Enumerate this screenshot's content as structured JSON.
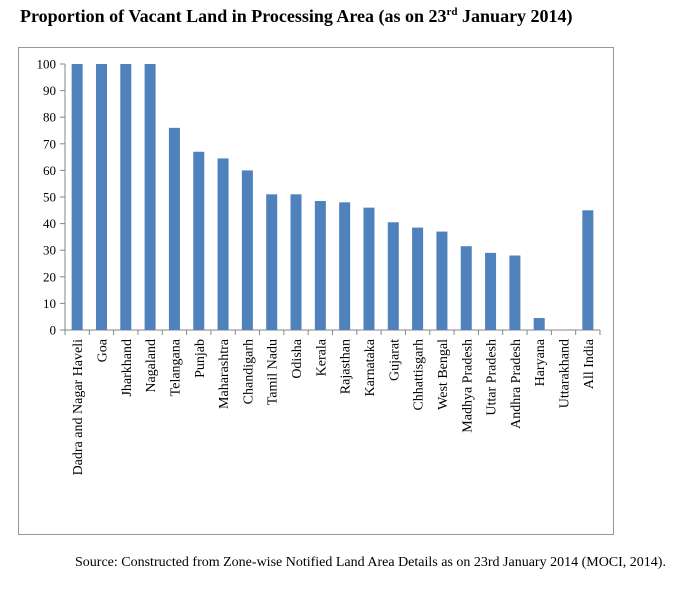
{
  "title": {
    "prefix": "Proportion of Vacant Land in Processing Area (as on 23",
    "sup": "rd",
    "suffix": " January 2014)"
  },
  "source": "Source: Constructed from Zone-wise Notified Land Area Details as on 23rd January 2014 (MOCI, 2014).",
  "colors": {
    "bar": "#4f81bd",
    "axis": "#868686"
  },
  "chart_data": {
    "type": "bar",
    "title": "Proportion of Vacant Land in Processing Area (as on 23rd January 2014)",
    "xlabel": "",
    "ylabel": "",
    "ylim": [
      0,
      100
    ],
    "yticks": [
      0,
      10,
      20,
      30,
      40,
      50,
      60,
      70,
      80,
      90,
      100
    ],
    "grid": false,
    "legend": "none",
    "categories": [
      "Dadra and Nagar Haveli",
      "Goa",
      "Jharkhand",
      "Nagaland",
      "Telangana",
      "Punjab",
      "Maharashtra",
      "Chandigarh",
      "Tamil Nadu",
      "Odisha",
      "Kerala",
      "Rajasthan",
      "Karnataka",
      "Gujarat",
      "Chhattisgarh",
      "West Bengal",
      "Madhya Pradesh",
      "Uttar Pradesh",
      "Andhra Pradesh",
      "Haryana",
      "Uttarakhand",
      "All India"
    ],
    "values": [
      100,
      100,
      100,
      100,
      76,
      67,
      64.5,
      60,
      51,
      51,
      48.5,
      48,
      46,
      40.5,
      38.5,
      37,
      31.5,
      29,
      28,
      4.5,
      0,
      45
    ]
  }
}
